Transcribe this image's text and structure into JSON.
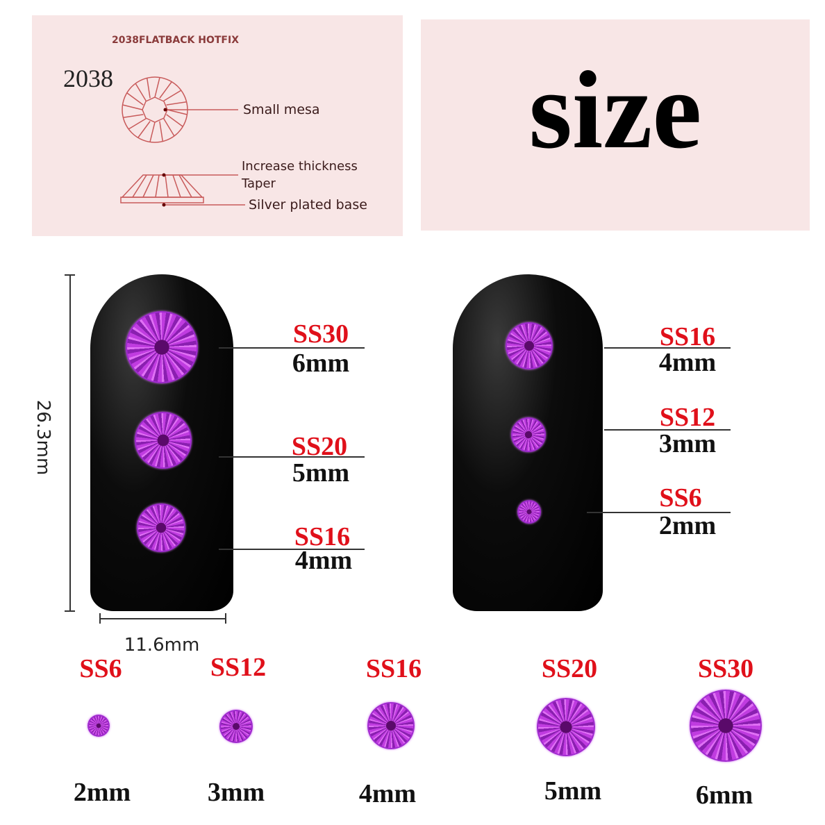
{
  "diagram": {
    "header": "2038FLATBACK HOTFIX",
    "model": "2038",
    "callouts": [
      "Small mesa",
      "Increase thickness",
      "Taper",
      "Silver plated base"
    ]
  },
  "title": "size",
  "dimensions": {
    "height": "26.3mm",
    "width": "11.6mm"
  },
  "left_nail": [
    {
      "ss": "SS30",
      "mm": "6mm"
    },
    {
      "ss": "SS20",
      "mm": "5mm"
    },
    {
      "ss": "SS16",
      "mm": "4mm"
    }
  ],
  "right_nail": [
    {
      "ss": "SS16",
      "mm": "4mm"
    },
    {
      "ss": "SS12",
      "mm": "3mm"
    },
    {
      "ss": "SS6",
      "mm": "2mm"
    }
  ],
  "row": [
    {
      "ss": "SS6",
      "mm": "2mm"
    },
    {
      "ss": "SS12",
      "mm": "3mm"
    },
    {
      "ss": "SS16",
      "mm": "4mm"
    },
    {
      "ss": "SS20",
      "mm": "5mm"
    },
    {
      "ss": "SS30",
      "mm": "6mm"
    }
  ],
  "colors": {
    "label_red": "#e0101a",
    "gem": "#b030d8",
    "panel": "#f8e6e6",
    "diagram_line": "#c85a5a"
  }
}
